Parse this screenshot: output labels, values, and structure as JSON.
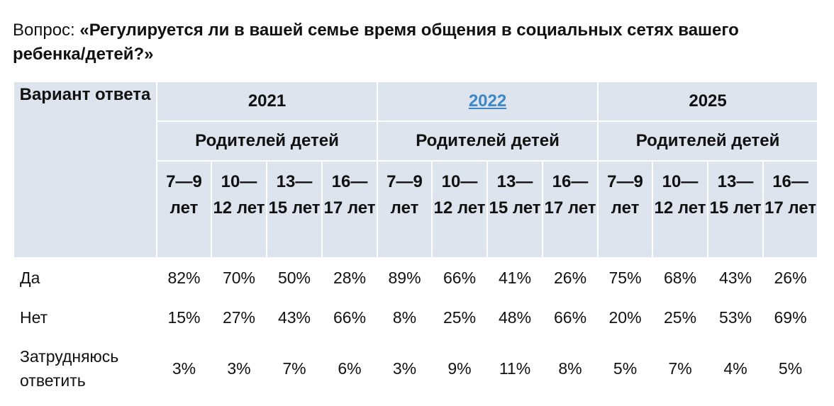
{
  "question": {
    "prefix": "Вопрос: ",
    "text": "«Регулируется ли в вашей семье время общения в социальных сетях вашего ребенка/детей?»"
  },
  "table": {
    "answer_header": "Вариант ответа",
    "years": [
      "2021",
      "2022",
      "2025"
    ],
    "group_label": "Родителей детей",
    "age_groups": [
      "7—9 лет",
      "10—12 лет",
      "13—15 лет",
      "16—17 лет"
    ],
    "rows": [
      {
        "label": "Да",
        "values": [
          "82%",
          "70%",
          "50%",
          "28%",
          "89%",
          "66%",
          "41%",
          "26%",
          "75%",
          "68%",
          "43%",
          "26%"
        ]
      },
      {
        "label": "Нет",
        "values": [
          "15%",
          "27%",
          "43%",
          "66%",
          "8%",
          "25%",
          "48%",
          "66%",
          "20%",
          "25%",
          "53%",
          "69%"
        ]
      },
      {
        "label": "Затрудняюсь ответить",
        "values": [
          "3%",
          "3%",
          "7%",
          "6%",
          "3%",
          "9%",
          "11%",
          "8%",
          "5%",
          "7%",
          "4%",
          "5%"
        ]
      }
    ]
  },
  "colors": {
    "header_bg": "#dde4ee",
    "link": "#3d87c7"
  }
}
